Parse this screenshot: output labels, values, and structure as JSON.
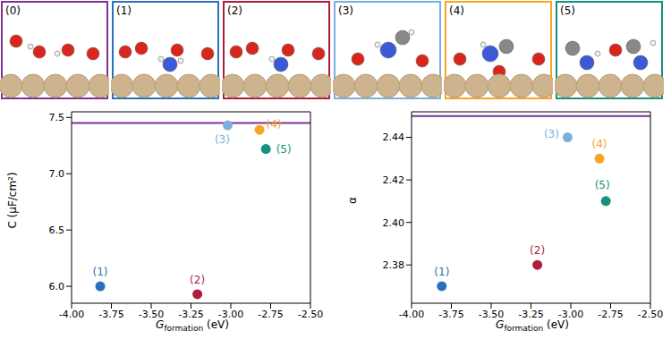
{
  "panels": [
    {
      "label": "(0)",
      "color": "#7b3294"
    },
    {
      "label": "(1)",
      "color": "#2a6fbb"
    },
    {
      "label": "(2)",
      "color": "#b01c3c"
    },
    {
      "label": "(3)",
      "color": "#7ab0dc"
    },
    {
      "label": "(4)",
      "color": "#f5a623"
    },
    {
      "label": "(5)",
      "color": "#17917f"
    }
  ],
  "chart_data": [
    {
      "type": "scatter",
      "x_label": {
        "main": "G",
        "sub": "formation",
        "unit": "(eV)"
      },
      "y_label": "C (μF/cm²)",
      "labels": [
        "(1)",
        "(2)",
        "(3)",
        "(4)",
        "(5)"
      ],
      "x": [
        -3.82,
        -3.21,
        -3.02,
        -2.82,
        -2.78
      ],
      "values": [
        6.0,
        5.93,
        7.43,
        7.39,
        7.22
      ],
      "colors": [
        "#2a6fbb",
        "#b01c3c",
        "#7ab0dc",
        "#f5a623",
        "#17917f"
      ],
      "reference": {
        "value": 7.45,
        "color": "#7b3294"
      },
      "xlim": [
        -4.0,
        -2.5
      ],
      "xticks": [
        {
          "value": -4.0,
          "label": "-4.00"
        },
        {
          "value": -3.75,
          "label": "-3.75"
        },
        {
          "value": -3.5,
          "label": "-3.50"
        },
        {
          "value": -3.25,
          "label": "-3.25"
        },
        {
          "value": -3.0,
          "label": "-3.00"
        },
        {
          "value": -2.75,
          "label": "-2.75"
        },
        {
          "value": -2.5,
          "label": "-2.50"
        }
      ],
      "ylim": [
        5.85,
        7.55
      ],
      "yticks": [
        {
          "value": 6,
          "label": "6.0"
        },
        6.5,
        {
          "value": 7,
          "label": "7.0"
        },
        7.5
      ],
      "grid": false
    },
    {
      "type": "scatter",
      "x_label": {
        "main": "G",
        "sub": "formation",
        "unit": "(eV)"
      },
      "y_label": "α",
      "labels": [
        "(1)",
        "(2)",
        "(3)",
        "(4)",
        "(5)"
      ],
      "x": [
        -3.81,
        -3.21,
        -3.02,
        -2.82,
        -2.78
      ],
      "values": [
        2.37,
        2.38,
        2.44,
        2.43,
        2.41
      ],
      "colors": [
        "#2a6fbb",
        "#b01c3c",
        "#7ab0dc",
        "#f5a623",
        "#17917f"
      ],
      "reference": {
        "value": 2.45,
        "color": "#7b3294"
      },
      "xlim": [
        -4.0,
        -2.5
      ],
      "xticks": [
        {
          "value": -4.0,
          "label": "-4.00"
        },
        {
          "value": -3.75,
          "label": "-3.75"
        },
        {
          "value": -3.5,
          "label": "-3.50"
        },
        {
          "value": -3.25,
          "label": "-3.25"
        },
        {
          "value": -3.0,
          "label": "-3.00"
        },
        {
          "value": -2.75,
          "label": "-2.75"
        },
        {
          "value": -2.5,
          "label": "-2.50"
        }
      ],
      "ylim": [
        2.362,
        2.452
      ],
      "yticks": [
        2.38,
        {
          "value": 2.4,
          "label": "2.40"
        },
        2.42,
        2.44
      ],
      "grid": false
    }
  ]
}
